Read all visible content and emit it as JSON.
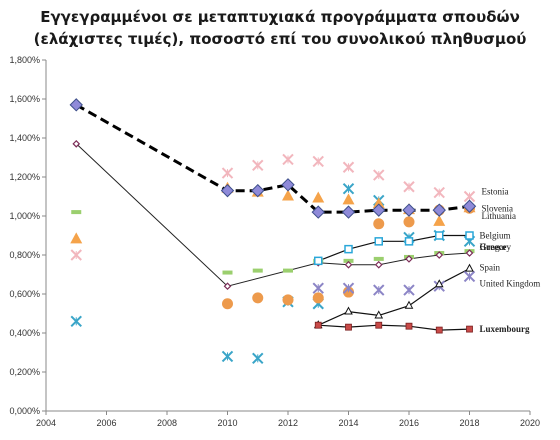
{
  "chart_data": {
    "type": "scatter",
    "title_lines": [
      "Εγγεγραμμένοι σε μεταπτυχιακά προγράμματα σπουδών",
      "(ελάχιστες τιμές), ποσοστό επί του συνολικού πληθυσμού"
    ],
    "x_ticks": [
      "2004",
      "2006",
      "2008",
      "2010",
      "2012",
      "2014",
      "2016",
      "2018",
      "2020"
    ],
    "y_ticks": [
      "0,000%",
      "0,200%",
      "0,400%",
      "0,600%",
      "0,800%",
      "1,000%",
      "1,200%",
      "1,400%",
      "1,600%",
      "1,800%"
    ],
    "xlim": [
      2004,
      2020
    ],
    "ylim": [
      0,
      1.8
    ],
    "y_unit": "%",
    "grid": false,
    "series": [
      {
        "name": "Estonia",
        "color": "#f2b6bd",
        "marker": "x",
        "line": "none",
        "label_bold": false,
        "points": [
          [
            2005,
            0.8
          ],
          [
            2010,
            1.22
          ],
          [
            2011,
            1.26
          ],
          [
            2012,
            1.29
          ],
          [
            2013,
            1.28
          ],
          [
            2014,
            1.25
          ],
          [
            2015,
            1.21
          ],
          [
            2016,
            1.15
          ],
          [
            2017,
            1.12
          ],
          [
            2018,
            1.1
          ]
        ]
      },
      {
        "name": "Slovenia",
        "color": "#8f8ad9",
        "marker": "diamond",
        "line": "dashed",
        "label_bold": false,
        "points": [
          [
            2005,
            1.57
          ],
          [
            2010,
            1.13
          ],
          [
            2011,
            1.13
          ],
          [
            2012,
            1.16
          ],
          [
            2013,
            1.02
          ],
          [
            2014,
            1.02
          ],
          [
            2015,
            1.03
          ],
          [
            2016,
            1.03
          ],
          [
            2017,
            1.03
          ],
          [
            2018,
            1.05
          ]
        ]
      },
      {
        "name": "Lithuania",
        "color": "#f5a34a",
        "marker": "triangle",
        "line": "none",
        "label_bold": false,
        "points": [
          [
            2005,
            0.88
          ],
          [
            2010,
            1.14
          ],
          [
            2011,
            1.12
          ],
          [
            2012,
            1.1
          ],
          [
            2013,
            1.09
          ],
          [
            2014,
            1.08
          ],
          [
            2015,
            1.06
          ],
          [
            2016,
            1.03
          ],
          [
            2017,
            0.97
          ],
          [
            2018,
            1.04
          ]
        ]
      },
      {
        "name": "Belgium",
        "color": "#2aa7d9",
        "marker": "square",
        "line": "solid",
        "label_bold": false,
        "points": [
          [
            2013,
            0.77
          ],
          [
            2014,
            0.83
          ],
          [
            2015,
            0.87
          ],
          [
            2016,
            0.87
          ],
          [
            2017,
            0.9
          ],
          [
            2018,
            0.9
          ]
        ]
      },
      {
        "name": "Hungary",
        "color": "#9bcf6e",
        "marker": "dash",
        "line": "none",
        "label_bold": false,
        "points": [
          [
            2005,
            1.02
          ],
          [
            2010,
            0.71
          ],
          [
            2011,
            0.72
          ],
          [
            2012,
            0.72
          ],
          [
            2013,
            0.77
          ],
          [
            2014,
            0.77
          ],
          [
            2015,
            0.78
          ],
          [
            2016,
            0.79
          ],
          [
            2017,
            0.81
          ],
          [
            2018,
            0.82
          ]
        ]
      },
      {
        "name": "Greece",
        "color": "#7c2d58",
        "marker": "diamond-small",
        "line": "solid",
        "label_bold": true,
        "points": [
          [
            2005,
            1.37
          ],
          [
            2010,
            0.64
          ],
          [
            2013,
            0.76
          ],
          [
            2014,
            0.75
          ],
          [
            2015,
            0.75
          ],
          [
            2016,
            0.78
          ],
          [
            2017,
            0.8
          ],
          [
            2018,
            0.81
          ]
        ]
      },
      {
        "name": "Spain",
        "color": "#e48b97",
        "marker": "triangle-open",
        "line": "solid",
        "label_bold": false,
        "points": [
          [
            2013,
            0.44
          ],
          [
            2014,
            0.51
          ],
          [
            2015,
            0.49
          ],
          [
            2016,
            0.54
          ],
          [
            2017,
            0.65
          ],
          [
            2018,
            0.73
          ]
        ]
      },
      {
        "name": "United Kingdom",
        "color": "#8c85c6",
        "marker": "x",
        "line": "none",
        "label_bold": false,
        "points": [
          [
            2013,
            0.63
          ],
          [
            2014,
            0.63
          ],
          [
            2015,
            0.62
          ],
          [
            2016,
            0.62
          ],
          [
            2017,
            0.64
          ],
          [
            2018,
            0.69
          ]
        ]
      },
      {
        "name": "Luxembourg",
        "color": "#c84a48",
        "marker": "square-small",
        "line": "solid",
        "label_bold": true,
        "points": [
          [
            2013,
            0.44
          ],
          [
            2014,
            0.43
          ],
          [
            2015,
            0.44
          ],
          [
            2016,
            0.435
          ],
          [
            2017,
            0.415
          ],
          [
            2018,
            0.42
          ]
        ]
      },
      {
        "name": "",
        "color": "#ed9a4c",
        "marker": "circle",
        "line": "none",
        "label_bold": false,
        "points": [
          [
            2010,
            0.55
          ],
          [
            2011,
            0.58
          ],
          [
            2012,
            0.57
          ],
          [
            2013,
            0.58
          ],
          [
            2014,
            0.61
          ],
          [
            2015,
            0.96
          ],
          [
            2016,
            0.97
          ],
          [
            2017,
            1.03
          ],
          [
            2018,
            1.04
          ]
        ]
      },
      {
        "name": "",
        "color": "#3aa5c8",
        "marker": "x",
        "line": "none",
        "label_bold": false,
        "points": [
          [
            2005,
            0.46
          ],
          [
            2010,
            0.28
          ],
          [
            2011,
            0.27
          ],
          [
            2012,
            0.56
          ],
          [
            2013,
            0.55
          ],
          [
            2014,
            1.14
          ],
          [
            2015,
            1.08
          ],
          [
            2016,
            0.89
          ],
          [
            2017,
            0.9
          ],
          [
            2018,
            0.87
          ]
        ]
      }
    ]
  }
}
